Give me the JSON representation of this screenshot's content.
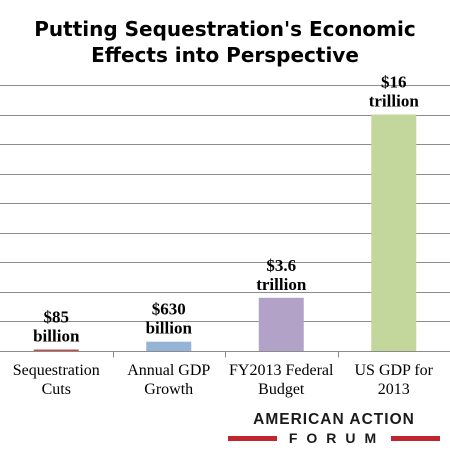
{
  "chart_data": {
    "type": "bar",
    "title_lines": [
      "Putting Sequestration's Economic",
      "Effects into Perspective"
    ],
    "categories": [
      [
        "Sequestration",
        "Cuts"
      ],
      [
        "Annual GDP",
        "Growth"
      ],
      [
        "FY2013 Federal",
        "Budget"
      ],
      [
        "US GDP for",
        "2013"
      ]
    ],
    "values": [
      0.085,
      0.63,
      3.6,
      16
    ],
    "units": "trillion dollars",
    "data_labels": [
      [
        "$85",
        "billion"
      ],
      [
        "$630",
        "billion"
      ],
      [
        "$3.6",
        "trillion"
      ],
      [
        "$16",
        "trillion"
      ]
    ],
    "colors": [
      "#c0504d",
      "#95b3d7",
      "#b3a2c7",
      "#c3d69b"
    ],
    "ylim": [
      0,
      18
    ],
    "grid": true,
    "ytick_labels_shown": false,
    "legend": "none"
  },
  "branding": {
    "logo_top": "AMERICAN ACTION",
    "logo_bottom": "FORUM",
    "logo_accent_color": "#c0262d"
  }
}
